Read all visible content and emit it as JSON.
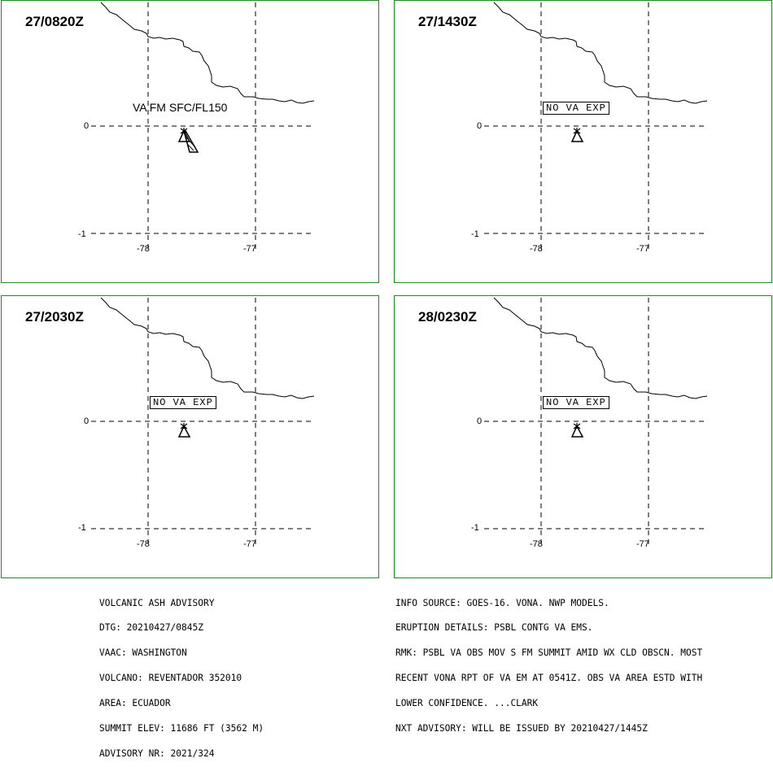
{
  "panels": [
    {
      "time": "27/0820Z",
      "ash_label": "VA FM SFC/FL150",
      "lat_ticks": [
        "0",
        "-1"
      ],
      "lon_ticks": [
        "-78",
        "-77"
      ]
    },
    {
      "time": "27/1430Z",
      "ash_label": "NO VA EXP",
      "lat_ticks": [
        "0",
        "-1"
      ],
      "lon_ticks": [
        "-78",
        "-77"
      ]
    },
    {
      "time": "27/2030Z",
      "ash_label": "NO VA EXP",
      "lat_ticks": [
        "0",
        "-1"
      ],
      "lon_ticks": [
        "-78",
        "-77"
      ]
    },
    {
      "time": "28/0230Z",
      "ash_label": "NO VA EXP",
      "lat_ticks": [
        "0",
        "-1"
      ],
      "lon_ticks": [
        "-78",
        "-77"
      ]
    }
  ],
  "advisory_left": [
    "VOLCANIC ASH ADVISORY",
    "DTG: 20210427/0845Z",
    "VAAC: WASHINGTON",
    "VOLCANO: REVENTADOR 352010",
    "AREA: ECUADOR",
    "SUMMIT ELEV: 11686 FT (3562 M)",
    "ADVISORY NR: 2021/324"
  ],
  "advisory_right": [
    "INFO SOURCE: GOES-16. VONA. NWP MODELS.",
    "ERUPTION DETAILS: PSBL CONTG VA EMS.",
    "RMK: PSBL VA OBS MOV S FM SUMMIT AMID WX CLD OBSCN. MOST",
    "RECENT VONA RPT OF VA EM AT 0541Z. OBS VA AREA ESTD WITH",
    "LOWER CONFIDENCE. ...CLARK",
    "NXT ADVISORY: WILL BE ISSUED BY 20210427/1445Z"
  ],
  "colors": {
    "frame": "#1f8a1f",
    "map_lines": "#000000"
  }
}
